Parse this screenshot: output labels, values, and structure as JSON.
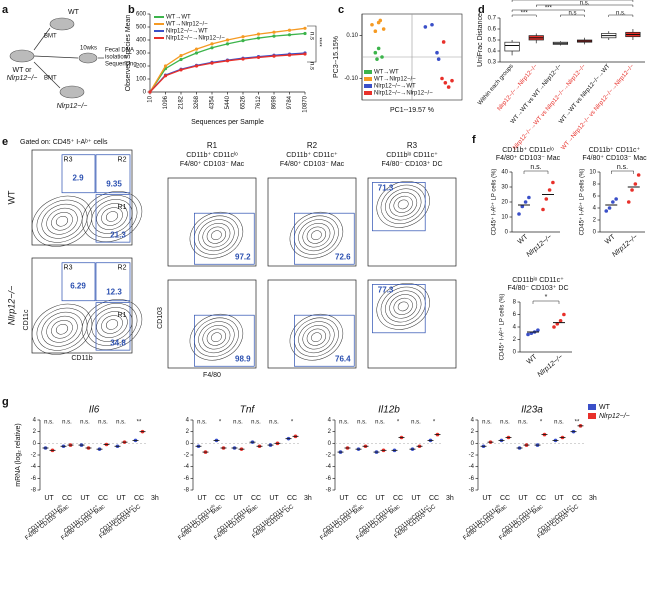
{
  "schematic": {
    "panel": "a",
    "donor": "WT",
    "recipient": "WT or",
    "recipient_ko": "Nlrp12−/−",
    "bmt": "BMT",
    "weeks": "10wks",
    "steps": [
      "Fecal DNA",
      "isolation",
      "Sequencing"
    ],
    "donor_ko": "Nlrp12−/−"
  },
  "flow": {
    "panel": "e",
    "gate_note": "Gated on: CD45⁺ I-Aᵇ⁺ cells",
    "row_labels": [
      "WT",
      "Nlrp12−/−"
    ],
    "left_axes": [
      "CD11b",
      "CD11c"
    ],
    "right_axes": [
      "F4/80",
      "CD103"
    ],
    "gate_names": [
      "R3",
      "R2",
      "R1"
    ],
    "columns": [
      [
        "R1",
        "CD11b⁺ CD11cˡᵒ",
        "F4/80⁺ CD103⁻ Mac"
      ],
      [
        "R2",
        "CD11b⁺ CD11c⁺",
        "F4/80⁺ CD103⁻ Mac"
      ],
      [
        "R3",
        "CD11bˡᵒ CD11c⁺",
        "F4/80⁻ CD103⁺ DC"
      ]
    ],
    "left_values": [
      [
        2.9,
        9.35,
        21.3
      ],
      [
        6.29,
        12.3,
        34.8
      ]
    ],
    "right_values": [
      [
        97.2,
        72.6,
        71.3
      ],
      [
        98.9,
        76.4,
        77.3
      ]
    ]
  },
  "chart_data": [
    {
      "type": "line",
      "panel": "b",
      "xlabel": "Sequences per Sample",
      "ylabel": "Observed Species Mean",
      "x": [
        10,
        1096,
        2182,
        3268,
        4354,
        5440,
        6526,
        7612,
        8698,
        9784,
        10870
      ],
      "xlim": [
        10,
        10870
      ],
      "ylim": [
        0,
        600
      ],
      "yticks": [
        0,
        100,
        200,
        300,
        400,
        500,
        600
      ],
      "series": [
        {
          "name": "WT→WT",
          "color": "#3cb44b",
          "values": [
            0,
            180,
            250,
            300,
            340,
            370,
            395,
            415,
            430,
            440,
            450
          ]
        },
        {
          "name": "WT→Nlrp12−/−",
          "color": "#f59a23",
          "values": [
            0,
            200,
            280,
            330,
            370,
            400,
            425,
            445,
            460,
            475,
            490
          ]
        },
        {
          "name": "Nlrp12−/−→WT",
          "color": "#3a4fc8",
          "values": [
            0,
            130,
            175,
            205,
            228,
            245,
            260,
            272,
            283,
            292,
            300
          ]
        },
        {
          "name": "Nlrp12−/−→Nlrp12−/−",
          "color": "#e8302a",
          "values": [
            0,
            125,
            170,
            200,
            222,
            240,
            254,
            266,
            276,
            284,
            292
          ]
        }
      ],
      "annotations": [
        "****",
        "n.s",
        "n.s"
      ]
    },
    {
      "type": "scatter",
      "panel": "c",
      "xlabel": "PC1--19.57 %",
      "ylabel": "PC3--15.15%",
      "xlim": [
        -0.3,
        0.3
      ],
      "ylim": [
        -0.2,
        0.2
      ],
      "yticks": [
        {
          "value": 0.1,
          "label": "0.10"
        },
        {
          "value": -0.1,
          "label": "-0.10"
        }
      ],
      "series": [
        {
          "name": "WT→WT",
          "color": "#3cb44b",
          "x": [
            -0.22,
            -0.2,
            -0.18,
            -0.21
          ],
          "y": [
            0.02,
            0.04,
            0.0,
            -0.01
          ]
        },
        {
          "name": "WT→Nlrp12−/−",
          "color": "#f59a23",
          "x": [
            -0.24,
            -0.2,
            -0.17,
            -0.22,
            -0.19
          ],
          "y": [
            0.15,
            0.16,
            0.13,
            0.12,
            0.17
          ]
        },
        {
          "name": "Nlrp12−/−→WT",
          "color": "#3a4fc8",
          "x": [
            0.08,
            0.12,
            0.15,
            0.16
          ],
          "y": [
            0.14,
            0.15,
            0.02,
            -0.01
          ]
        },
        {
          "name": "Nlrp12−/−→Nlrp12−/−",
          "color": "#e8302a",
          "x": [
            0.18,
            0.2,
            0.22,
            0.24,
            0.19
          ],
          "y": [
            -0.1,
            -0.12,
            -0.14,
            -0.11,
            0.07
          ]
        }
      ]
    },
    {
      "type": "box",
      "panel": "d",
      "ylabel": "UniFrac Distance",
      "ylim": [
        0.3,
        0.7
      ],
      "yticks": [
        0.3,
        0.4,
        0.5,
        0.6,
        0.7
      ],
      "categories": [
        "Within each groups",
        "Nlrp12−/−→Nlrp12−/−",
        "WT→WT vs WT→Nlrp12−/−",
        "Nlrp12−/−→WT vs Nlrp12−/−→Nlrp12−/−",
        "WT→WT vs Nlrp12−/−→WT",
        "WT→Nlrp12−/− vs Nlrp12−/−→Nlrp12−/−"
      ],
      "label_colors": [
        "#111",
        "#e8302a",
        "#111",
        "#e8302a",
        "#111",
        "#e8302a"
      ],
      "colors": [
        "#ffffff",
        "#e8302a",
        "#ffffff",
        "#e8302a",
        "#ffffff",
        "#e8302a"
      ],
      "boxes": [
        [
          0.36,
          0.4,
          0.45,
          0.48,
          0.5
        ],
        [
          0.47,
          0.5,
          0.52,
          0.54,
          0.56
        ],
        [
          0.45,
          0.46,
          0.47,
          0.48,
          0.49
        ],
        [
          0.46,
          0.48,
          0.49,
          0.5,
          0.52
        ],
        [
          0.5,
          0.52,
          0.54,
          0.56,
          0.58
        ],
        [
          0.5,
          0.53,
          0.55,
          0.57,
          0.6
        ]
      ],
      "annotations": [
        "***",
        "n.s",
        "n.s.",
        "***",
        "n.s.",
        "***"
      ]
    },
    {
      "type": "strip",
      "panel": "f",
      "title": [
        "CD11b⁺ CD11cˡᵒ",
        "F4/80⁺ CD103⁻ Mac"
      ],
      "ylabel": "CD45⁺ I-Aᵇ⁺ LP cells (%)",
      "categories": [
        "WT",
        "Nlrp12−/−"
      ],
      "colors": [
        "#3a4fc8",
        "#e8302a"
      ],
      "ylim": [
        0,
        40
      ],
      "yticks": [
        0,
        10,
        20,
        30,
        40
      ],
      "values": [
        18,
        25
      ],
      "points": [
        [
          12,
          17,
          20,
          23
        ],
        [
          15,
          22,
          28,
          33
        ]
      ],
      "annotation": "n.s."
    },
    {
      "type": "strip",
      "title": [
        "CD11b⁺ CD11c⁺",
        "F4/80⁺ CD103⁻ Mac"
      ],
      "ylabel": "CD45⁺ I-Aᵇ⁺ LP cells (%)",
      "categories": [
        "WT",
        "Nlrp12−/−"
      ],
      "colors": [
        "#3a4fc8",
        "#e8302a"
      ],
      "ylim": [
        0,
        10
      ],
      "yticks": [
        0,
        2,
        4,
        6,
        8,
        10
      ],
      "values": [
        4.5,
        7.5
      ],
      "points": [
        [
          3.5,
          4,
          5,
          5.5
        ],
        [
          5,
          7,
          8,
          9.5
        ]
      ],
      "annotation": "n.s."
    },
    {
      "type": "strip",
      "title": [
        "CD11bˡᵒ CD11c⁺",
        "F4/80⁻ CD103⁺ DC"
      ],
      "ylabel": "CD45⁺ I-Aᵇ⁺ LP cells (%)",
      "categories": [
        "WT",
        "Nlrp12−/−"
      ],
      "colors": [
        "#3a4fc8",
        "#e8302a"
      ],
      "ylim": [
        0,
        8
      ],
      "yticks": [
        0,
        2,
        4,
        6,
        8
      ],
      "values": [
        3.2,
        4.7
      ],
      "points": [
        [
          2.8,
          3,
          3.2,
          3.5
        ],
        [
          4,
          4.5,
          5,
          6
        ]
      ],
      "annotation": "*"
    },
    {
      "type": "dotmean",
      "panel": "g",
      "ylabel": "mRNA (log₂ relative)",
      "ylim": [
        -8,
        4
      ],
      "yticks": [
        -8,
        -6,
        -4,
        -2,
        0,
        2,
        4
      ],
      "categories": [
        "UT",
        "CC",
        "UT",
        "CC",
        "UT",
        "CC"
      ],
      "time": "3h",
      "groups": [
        [
          "CD11b⁺CD11cˡᵒ",
          "F4/80⁺CD103⁻ Mac"
        ],
        [
          "CD11b⁺CD11c⁺",
          "F4/80⁺CD103⁻ Mac"
        ],
        [
          "CD11bˡᵒCD11c⁺",
          "F4/80⁻CD103⁺ DC"
        ]
      ],
      "series": [
        {
          "name": "WT",
          "color": "#3a4fc8"
        },
        {
          "name": "Nlrp12−/−",
          "color": "#e8302a"
        }
      ],
      "panels": [
        {
          "title": "Il6",
          "values": [
            [
              -0.8,
              -0.5,
              -0.3,
              -1.0,
              -0.5,
              0.5
            ],
            [
              -1.2,
              -0.3,
              -0.8,
              -0.2,
              0.2,
              2.0
            ]
          ],
          "annotations": [
            "n.s.",
            "n.s.",
            "n.s.",
            "n.s.",
            "n.s.",
            "**"
          ]
        },
        {
          "title": "Tnf",
          "values": [
            [
              -0.5,
              0.5,
              -0.8,
              0.2,
              -0.3,
              0.8
            ],
            [
              -1.5,
              -0.8,
              -1.0,
              -0.5,
              0.0,
              1.2
            ]
          ],
          "annotations": [
            "n.s.",
            "*",
            "n.s.",
            "n.s.",
            "n.s.",
            "*"
          ]
        },
        {
          "title": "Il12b",
          "values": [
            [
              -1.5,
              -1.0,
              -1.5,
              -1.2,
              -1.0,
              0.5
            ],
            [
              -0.8,
              -0.5,
              -1.2,
              1.0,
              -0.5,
              1.5
            ]
          ],
          "annotations": [
            "n.s.",
            "n.s.",
            "n.s.",
            "*",
            "n.s.",
            "*"
          ]
        },
        {
          "title": "Il23a",
          "values": [
            [
              -0.5,
              0.5,
              -0.8,
              -0.3,
              0.5,
              2.0
            ],
            [
              0.2,
              1.0,
              -0.3,
              1.5,
              1.0,
              3.0
            ]
          ],
          "annotations": [
            "n.s.",
            "n.s.",
            "n.s.",
            "*",
            "n.s.",
            "**"
          ]
        }
      ]
    }
  ]
}
